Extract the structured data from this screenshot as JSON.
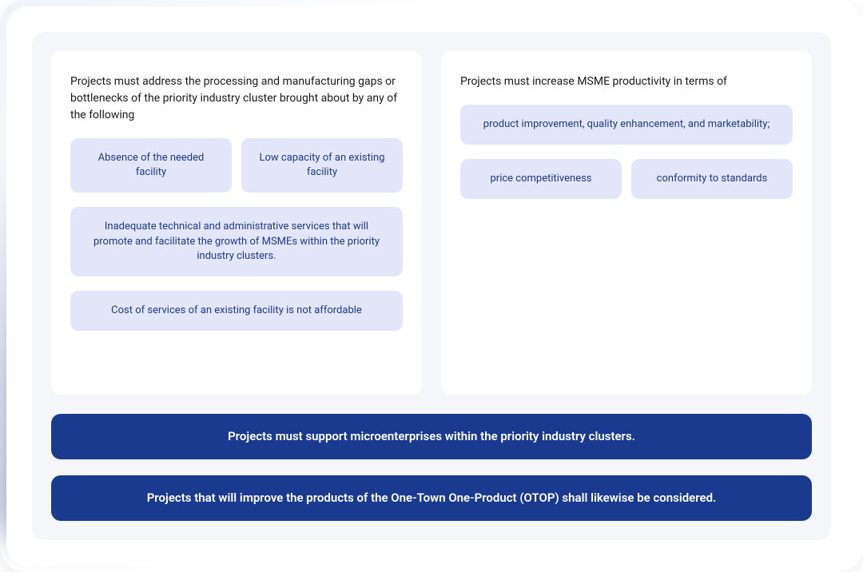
{
  "colors": {
    "pill_bg": "#e2e6f8",
    "pill_text": "#1e3a8a",
    "card_bg": "#ffffff",
    "content_bg": "#f5f6fa",
    "banner_bg": "#1a3a8f",
    "banner_text": "#ffffff",
    "title_text": "#1a1a1a"
  },
  "left_card": {
    "title": "Projects must address the processing and manufacturing gaps or bottlenecks of the priority industry cluster brought about by any of the following",
    "items": [
      "Absence of the needed facility",
      "Low capacity of an existing facility",
      "Inadequate technical and administrative services that will promote and facilitate the growth of MSMEs within the priority industry clusters.",
      "Cost of services of an existing facility is not affordable"
    ]
  },
  "right_card": {
    "title": "Projects must increase MSME productivity in terms of",
    "items": [
      "product improvement, quality enhancement, and marketability;",
      "price competitiveness",
      "conformity to standards"
    ]
  },
  "banners": [
    "Projects must support microenterprises within the priority industry clusters.",
    "Projects that will improve the products of the One-Town One-Product (OTOP) shall likewise be considered."
  ]
}
